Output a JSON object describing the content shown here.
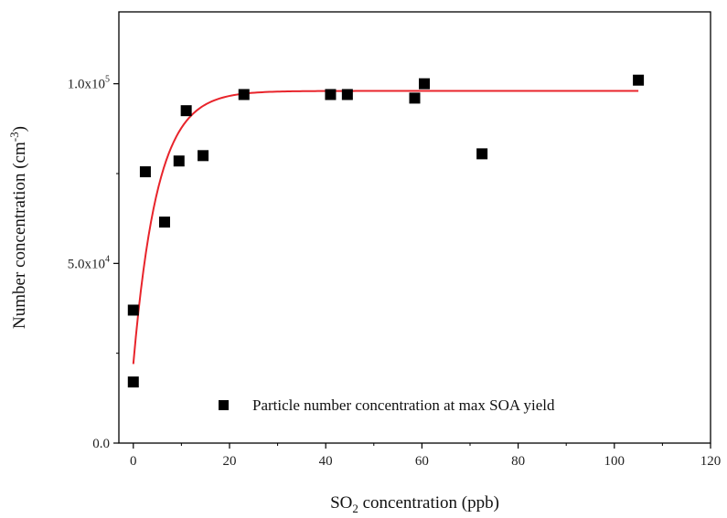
{
  "chart_data": {
    "type": "scatter",
    "xlabel_main": "SO",
    "xlabel_sub": "2",
    "xlabel_rest": " concentration (ppb)",
    "ylabel_main": "Number concentration (cm",
    "ylabel_sup": "-3",
    "ylabel_rest": ")",
    "xlim": [
      -3,
      120
    ],
    "ylim": [
      0,
      120000
    ],
    "x_ticks": [
      0,
      20,
      40,
      60,
      80,
      100,
      120
    ],
    "x_tick_labels": [
      "0",
      "20",
      "40",
      "60",
      "80",
      "100",
      "120"
    ],
    "y_ticks": [
      0,
      50000,
      100000
    ],
    "y_tick_labels": [
      {
        "base": "0.0",
        "exp": ""
      },
      {
        "base": "5.0x10",
        "exp": "4"
      },
      {
        "base": "1.0x10",
        "exp": "5"
      }
    ],
    "series": [
      {
        "name": "Particle number concentration at max SOA yield",
        "marker": "square",
        "color": "#000000",
        "x": [
          0,
          0,
          2.5,
          6.5,
          9.5,
          11,
          14.5,
          23,
          41,
          44.5,
          58.5,
          60.5,
          72.5,
          105
        ],
        "y": [
          37000,
          17000,
          75500,
          61500,
          78500,
          92500,
          80000,
          97000,
          97000,
          97000,
          96000,
          100000,
          80500,
          101000
        ]
      }
    ],
    "fit": {
      "model": "exponential saturation",
      "color": "#e8242b",
      "y_max": 98000,
      "y_at_zero": 22000,
      "rate": 0.2,
      "x_range": [
        0,
        105
      ]
    },
    "legend_position": "bottom-right"
  }
}
